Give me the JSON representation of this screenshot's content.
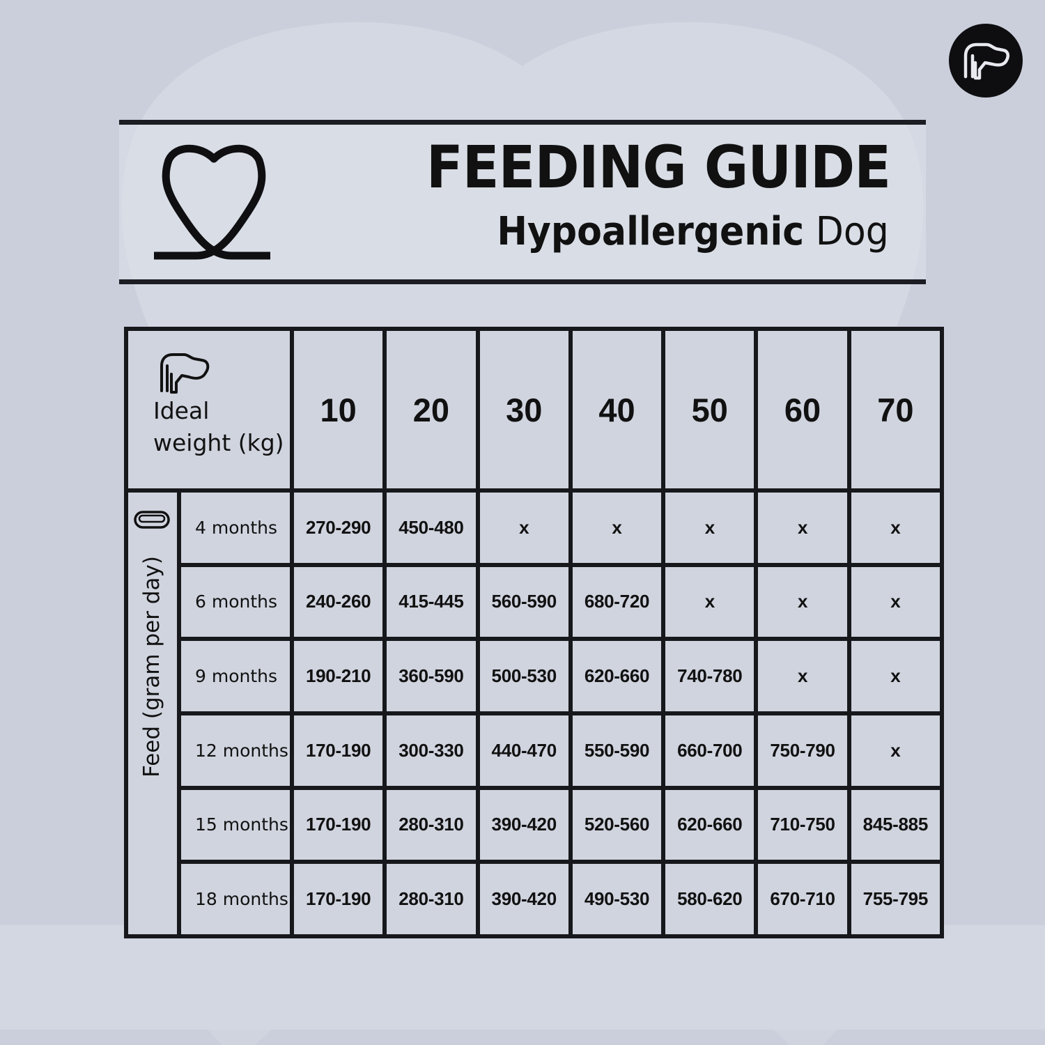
{
  "brand": {
    "badge_icon": "dog-head-icon",
    "header_icon": "heart-ribbon-icon"
  },
  "header": {
    "title": "FEEDING GUIDE",
    "subtitle_strong": "Hypoallergenic",
    "subtitle_rest": "Dog"
  },
  "table": {
    "corner_icon": "dog-head-icon",
    "corner_label": "Ideal weight (kg)",
    "feed_icon": "food-bowl-icon",
    "feed_label": "Feed (gram per day)",
    "weights": [
      "10",
      "20",
      "30",
      "40",
      "50",
      "60",
      "70"
    ],
    "rows": [
      {
        "age": "4 months",
        "values": [
          "270-290",
          "450-480",
          "x",
          "x",
          "x",
          "x",
          "x"
        ]
      },
      {
        "age": "6 months",
        "values": [
          "240-260",
          "415-445",
          "560-590",
          "680-720",
          "x",
          "x",
          "x"
        ]
      },
      {
        "age": "9 months",
        "values": [
          "190-210",
          "360-590",
          "500-530",
          "620-660",
          "740-780",
          "x",
          "x"
        ]
      },
      {
        "age": "12 months",
        "values": [
          "170-190",
          "300-330",
          "440-470",
          "550-590",
          "660-700",
          "750-790",
          "x"
        ]
      },
      {
        "age": "15 months",
        "values": [
          "170-190",
          "280-310",
          "390-420",
          "520-560",
          "620-660",
          "710-750",
          "845-885"
        ]
      },
      {
        "age": "18 months",
        "values": [
          "170-190",
          "280-310",
          "390-420",
          "490-530",
          "580-620",
          "670-710",
          "755-795"
        ]
      }
    ]
  },
  "colors": {
    "background": "#cbcfdc",
    "cell": "#d0d4df",
    "ink": "#111111",
    "grid": "#17181c"
  }
}
